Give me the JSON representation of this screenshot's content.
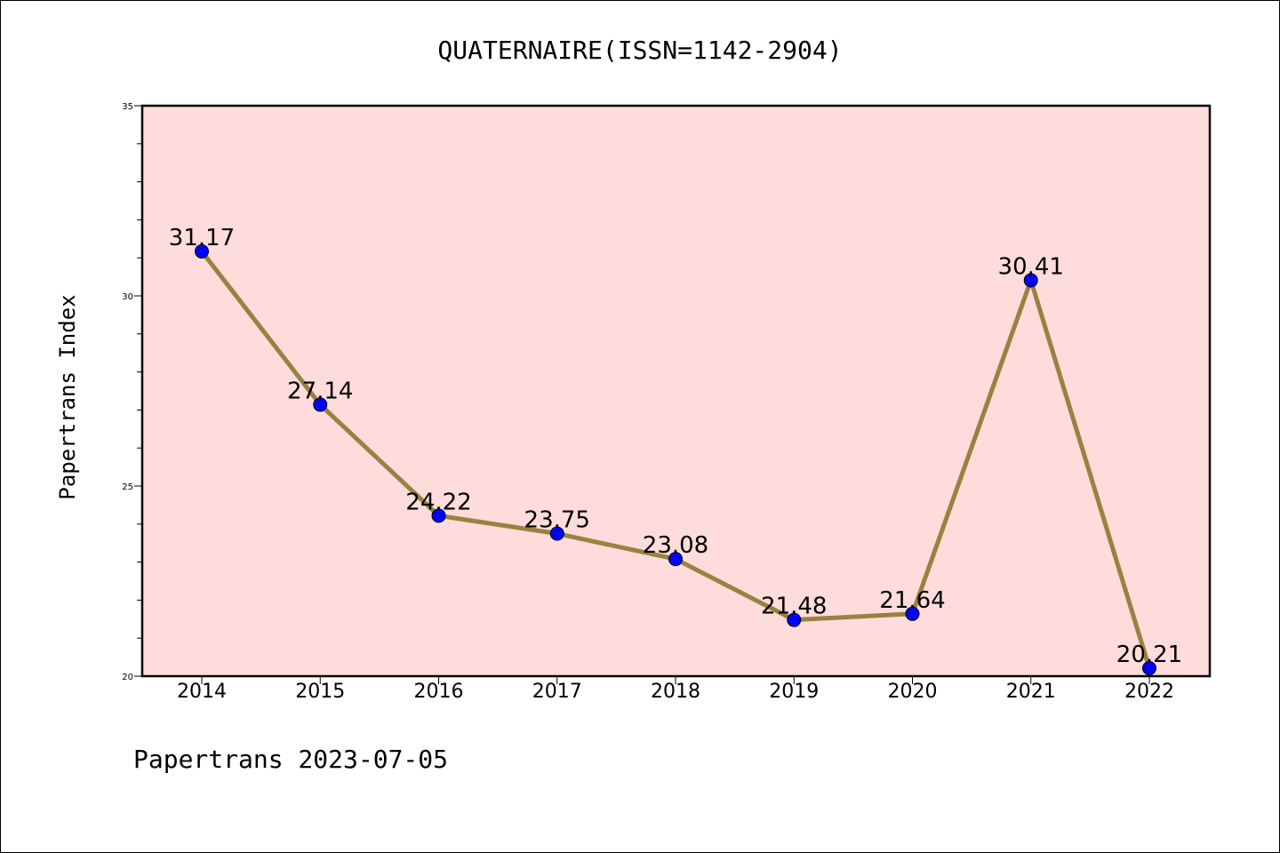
{
  "title": "QUATERNAIRE(ISSN=1142-2904)",
  "footer": "Papertrans 2023-07-05",
  "colors": {
    "plot_background": "#fddcdb",
    "line": "#998240",
    "marker": "#0000ff"
  },
  "chart_data": {
    "type": "line",
    "title": "QUATERNAIRE(ISSN=1142-2904)",
    "xlabel": "",
    "ylabel": "Papertrans Index",
    "categories": [
      "2014",
      "2015",
      "2016",
      "2017",
      "2018",
      "2019",
      "2020",
      "2021",
      "2022"
    ],
    "series": [
      {
        "values": [
          31.17,
          27.14,
          24.22,
          23.75,
          23.08,
          21.48,
          21.64,
          30.41,
          20.21
        ],
        "labels": [
          "31.17",
          "27.14",
          "24.22",
          "23.75",
          "23.08",
          "21.48",
          "21.64",
          "30.41",
          "20.21"
        ]
      }
    ],
    "ylim": [
      20,
      35
    ],
    "yticks": [
      20,
      25,
      30,
      35
    ],
    "grid": false,
    "legend": "none"
  }
}
